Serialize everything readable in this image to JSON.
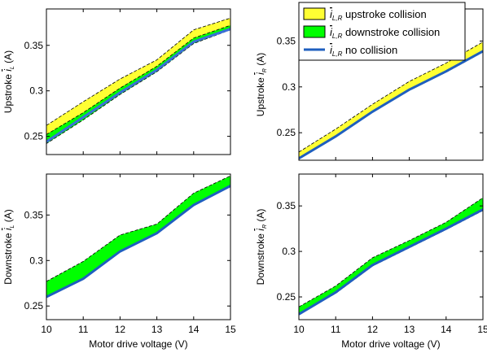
{
  "chart_data": [
    {
      "type": "area",
      "panel": "top-left",
      "xlabel": "",
      "ylabel": "Upstroke i_L (A)",
      "ylabel_parts": {
        "prefix": "Upstroke ",
        "symbol": "i",
        "subscript": "L",
        "unit": " (A)"
      },
      "xlim": [
        10,
        15
      ],
      "ylim": [
        0.23,
        0.39
      ],
      "xticks": [],
      "yticks": [
        0.25,
        0.3,
        0.35
      ],
      "ytick_labels": [
        "0.25",
        "0.3",
        "0.35"
      ],
      "x": [
        10,
        11,
        12,
        13,
        14,
        15
      ],
      "series": [
        {
          "name": "upstroke collision",
          "kind": "band",
          "color": "#ffff33",
          "lower": [
            0.245,
            0.272,
            0.3,
            0.325,
            0.356,
            0.37
          ],
          "upper": [
            0.262,
            0.288,
            0.313,
            0.334,
            0.367,
            0.38
          ]
        },
        {
          "name": "downstroke collision",
          "kind": "band",
          "color": "#00ff00",
          "lower": [
            0.242,
            0.268,
            0.296,
            0.321,
            0.352,
            0.367
          ],
          "upper": [
            0.252,
            0.276,
            0.303,
            0.327,
            0.358,
            0.372
          ]
        },
        {
          "name": "no collision",
          "kind": "line",
          "color": "#3a6fd8",
          "values": [
            0.244,
            0.271,
            0.298,
            0.323,
            0.354,
            0.368
          ]
        }
      ]
    },
    {
      "type": "area",
      "panel": "top-right",
      "xlabel": "",
      "ylabel": "Upstroke i_R (A)",
      "ylabel_parts": {
        "prefix": "Upstroke ",
        "symbol": "i",
        "subscript": "R",
        "unit": " (A)"
      },
      "xlim": [
        10,
        15
      ],
      "ylim": [
        0.22,
        0.385
      ],
      "xticks": [],
      "yticks": [
        0.25,
        0.3,
        0.35
      ],
      "ytick_labels": [
        "0.25",
        "0.3",
        "0.35"
      ],
      "x": [
        10,
        11,
        12,
        13,
        14,
        15
      ],
      "series": [
        {
          "name": "upstroke collision",
          "kind": "band",
          "color": "#ffff33",
          "lower": [
            0.222,
            0.246,
            0.273,
            0.297,
            0.316,
            0.338
          ],
          "upper": [
            0.229,
            0.254,
            0.281,
            0.306,
            0.326,
            0.349
          ]
        },
        {
          "name": "no collision",
          "kind": "line",
          "color": "#1f5fbf",
          "values": [
            0.222,
            0.246,
            0.273,
            0.297,
            0.317,
            0.339
          ]
        }
      ]
    },
    {
      "type": "area",
      "panel": "bottom-left",
      "xlabel": "Motor drive voltage (V)",
      "ylabel": "Downstroke i_L (A)",
      "ylabel_parts": {
        "prefix": "Downstroke ",
        "symbol": "i",
        "subscript": "L",
        "unit": " (A)"
      },
      "xlim": [
        10,
        15
      ],
      "ylim": [
        0.235,
        0.395
      ],
      "xticks": [
        10,
        11,
        12,
        13,
        14,
        15
      ],
      "xtick_labels": [
        "10",
        "11",
        "12",
        "13",
        "14",
        "15"
      ],
      "yticks": [
        0.25,
        0.3,
        0.35
      ],
      "ytick_labels": [
        "0.25",
        "0.3",
        "0.35"
      ],
      "x": [
        10,
        11,
        12,
        13,
        14,
        15
      ],
      "series": [
        {
          "name": "downstroke collision",
          "kind": "band",
          "color": "#00ff00",
          "lower": [
            0.26,
            0.279,
            0.31,
            0.33,
            0.361,
            0.382
          ],
          "upper": [
            0.277,
            0.299,
            0.328,
            0.34,
            0.374,
            0.393
          ]
        },
        {
          "name": "no collision",
          "kind": "line",
          "color": "#1f5fbf",
          "values": [
            0.26,
            0.28,
            0.31,
            0.33,
            0.361,
            0.382
          ]
        }
      ]
    },
    {
      "type": "area",
      "panel": "bottom-right",
      "xlabel": "Motor drive voltage (V)",
      "ylabel": "Downstroke i_R (A)",
      "ylabel_parts": {
        "prefix": "Downstroke ",
        "symbol": "i",
        "subscript": "R",
        "unit": " (A)"
      },
      "xlim": [
        10,
        15
      ],
      "ylim": [
        0.225,
        0.385
      ],
      "xticks": [
        10,
        11,
        12,
        13,
        14,
        15
      ],
      "xtick_labels": [
        "10",
        "11",
        "12",
        "13",
        "14",
        "15"
      ],
      "yticks": [
        0.25,
        0.3,
        0.35
      ],
      "ytick_labels": [
        "0.25",
        "0.3",
        "0.35"
      ],
      "x": [
        10,
        11,
        12,
        13,
        14,
        15
      ],
      "series": [
        {
          "name": "upstroke collision",
          "kind": "band",
          "color": "#ffff33",
          "lower": [
            0.231,
            0.254,
            0.284,
            0.304,
            0.324,
            0.345
          ],
          "upper": [
            0.236,
            0.258,
            0.289,
            0.307,
            0.327,
            0.348
          ]
        },
        {
          "name": "downstroke collision",
          "kind": "band",
          "color": "#00ff00",
          "lower": [
            0.231,
            0.254,
            0.284,
            0.304,
            0.324,
            0.345
          ],
          "upper": [
            0.239,
            0.262,
            0.293,
            0.312,
            0.332,
            0.359
          ]
        },
        {
          "name": "no collision",
          "kind": "line",
          "color": "#1f5fbf",
          "values": [
            0.231,
            0.255,
            0.285,
            0.305,
            0.325,
            0.346
          ]
        }
      ]
    }
  ],
  "legend": {
    "placement": "top-right",
    "entries": [
      {
        "symbol": "i",
        "subscript": "L,R",
        "label": " upstroke collision",
        "color": "#ffff33",
        "kind": "patch"
      },
      {
        "symbol": "i",
        "subscript": "L,R",
        "label": " downstroke collision",
        "color": "#00ff00",
        "kind": "patch"
      },
      {
        "symbol": "i",
        "subscript": "L,R",
        "label": " no collision",
        "color": "#1f5fbf",
        "kind": "line"
      }
    ]
  }
}
